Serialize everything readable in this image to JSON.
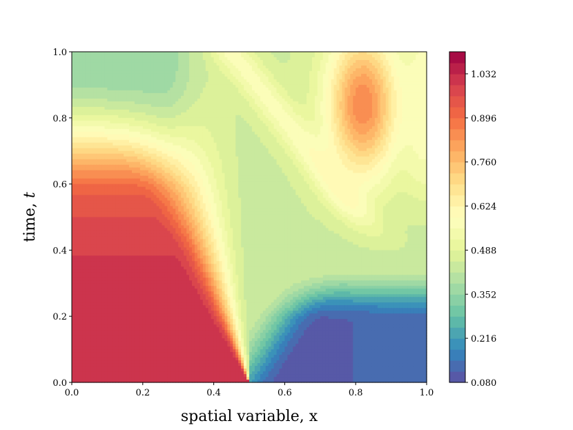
{
  "chart_data": {
    "type": "heatmap",
    "subtype": "filled-contour",
    "title": "",
    "xlabel": "spatial variable, x",
    "ylabel_text": "time, ",
    "ylabel_var": "t",
    "xlim": [
      0.0,
      1.0
    ],
    "ylim": [
      0.0,
      1.0
    ],
    "xticks": [
      "0.0",
      "0.2",
      "0.4",
      "0.6",
      "0.8",
      "1.0"
    ],
    "yticks": [
      "0.0",
      "0.2",
      "0.4",
      "0.6",
      "0.8",
      "1.0"
    ],
    "grid": false,
    "colormap": "Spectral_r",
    "colorbar": {
      "min": 0.08,
      "max": 1.1,
      "levels": 30,
      "ticks": [
        "0.080",
        "0.216",
        "0.352",
        "0.488",
        "0.624",
        "0.760",
        "0.896",
        "1.032"
      ],
      "placement": "right"
    },
    "field_features": {
      "initial_discontinuity_x": 0.5,
      "left_state_t0": 1.0,
      "right_state_t0": 0.1,
      "middle_state": 0.45,
      "peak": {
        "x": 0.82,
        "t": 0.84,
        "value": 0.93
      },
      "upper_left_plateau": 0.36,
      "lower_right_plateau": 0.13
    }
  },
  "colors": {
    "stops": [
      "#5e4fa2",
      "#3288bd",
      "#66c2a5",
      "#abdda4",
      "#e6f598",
      "#ffffbf",
      "#fee08b",
      "#fdae61",
      "#f46d43",
      "#d53e4f",
      "#9e0142"
    ]
  }
}
